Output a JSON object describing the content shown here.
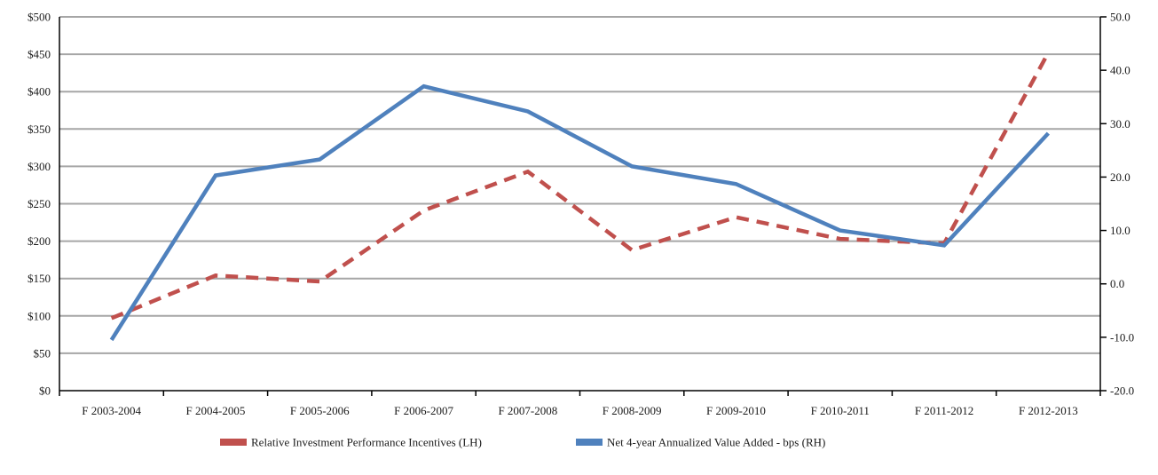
{
  "chart_data": {
    "type": "line",
    "categories": [
      "F 2003-2004",
      "F 2004-2005",
      "F 2005-2006",
      "F 2006-2007",
      "F 2007-2008",
      "F 2008-2009",
      "F 2009-2010",
      "F 2010-2011",
      "F 2011-2012",
      "F 2012-2013"
    ],
    "series": [
      {
        "name": "Relative Investment Performance Incentives (LH)",
        "axis": "left",
        "style": "dashed",
        "color": "#c0504d",
        "values": [
          97,
          154,
          146,
          241,
          293,
          188,
          232,
          203,
          197,
          452
        ]
      },
      {
        "name": "Net 4-year Annualized Value Added - bps (RH)",
        "axis": "right",
        "style": "solid",
        "color": "#4f81bd",
        "values": [
          -10.5,
          20.3,
          23.3,
          37.0,
          32.3,
          22.0,
          18.7,
          10.0,
          7.2,
          28.2
        ]
      }
    ],
    "y_left": {
      "ylim": [
        0,
        500
      ],
      "ticks": [
        "$0",
        "$50",
        "$100",
        "$150",
        "$200",
        "$250",
        "$300",
        "$350",
        "$400",
        "$450",
        "$500"
      ]
    },
    "y_right": {
      "ylim": [
        -20,
        50
      ],
      "ticks": [
        "-20.0",
        "-10.0",
        "0.0",
        "10.0",
        "20.0",
        "30.0",
        "40.0",
        "50.0"
      ]
    },
    "grid": true,
    "legend_position": "bottom-center",
    "title": "",
    "xlabel": "",
    "ylabel": ""
  }
}
